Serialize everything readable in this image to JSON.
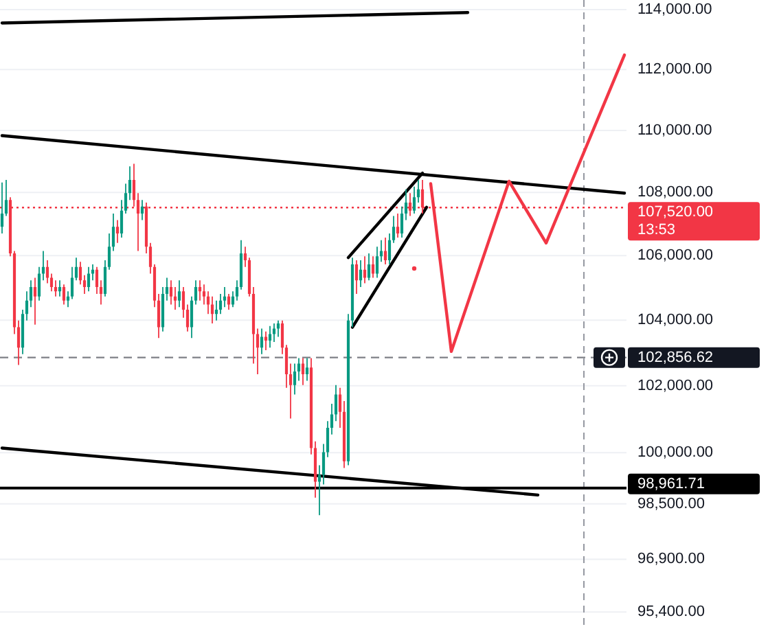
{
  "chart_data": {
    "type": "candlestick",
    "categories": [
      null,
      null,
      null,
      null,
      null,
      null,
      null,
      null,
      null,
      null,
      null,
      null,
      null,
      null,
      null,
      null,
      null,
      null,
      null,
      null,
      null,
      null,
      null,
      null,
      null,
      null,
      null,
      null,
      null,
      null,
      null,
      null,
      null,
      null,
      null,
      null,
      null,
      null,
      null,
      null,
      null,
      null,
      null,
      null,
      null,
      null,
      null,
      null,
      null,
      null,
      null,
      null,
      null,
      null,
      null,
      null,
      null,
      null,
      null,
      null,
      null,
      null,
      null,
      null,
      null,
      null,
      null,
      null,
      null,
      null,
      null,
      null,
      null,
      null,
      null,
      null,
      null,
      null,
      null,
      null,
      null,
      null,
      null,
      null,
      null,
      null,
      null,
      null,
      null,
      null,
      null,
      null,
      null,
      null,
      null,
      null,
      null,
      null,
      null,
      null,
      null,
      null,
      null,
      null,
      null,
      null,
      null,
      null,
      null,
      null,
      null,
      null,
      null,
      null,
      null,
      null,
      null,
      null,
      null,
      null,
      null,
      null,
      null,
      null,
      null,
      null,
      null,
      null,
      null,
      null,
      null,
      null,
      null,
      null,
      null,
      null,
      null,
      null,
      null,
      null,
      null,
      null,
      null,
      null,
      null,
      null,
      null,
      null,
      null,
      null,
      null,
      null
    ],
    "ohlc": [
      [
        106910,
        108320,
        106700,
        107330
      ],
      [
        107330,
        108400,
        107250,
        107760
      ],
      [
        107760,
        107850,
        105980,
        106070
      ],
      [
        106070,
        106150,
        103570,
        103780
      ],
      [
        103780,
        103990,
        102630,
        103160
      ],
      [
        103160,
        104320,
        102960,
        104190
      ],
      [
        104190,
        104890,
        103990,
        104600
      ],
      [
        104600,
        105230,
        104400,
        105020
      ],
      [
        105020,
        105310,
        103860,
        104730
      ],
      [
        104730,
        105650,
        104600,
        105440
      ],
      [
        105440,
        106150,
        105230,
        105650
      ],
      [
        105650,
        105860,
        105140,
        105310
      ],
      [
        105310,
        105440,
        104890,
        105020
      ],
      [
        105020,
        105230,
        104730,
        104890
      ],
      [
        104890,
        105230,
        104730,
        105020
      ],
      [
        105020,
        105100,
        104480,
        104600
      ],
      [
        104600,
        104890,
        104400,
        104730
      ],
      [
        104730,
        105650,
        104650,
        105310
      ],
      [
        105310,
        105940,
        105230,
        105650
      ],
      [
        105650,
        105810,
        105100,
        105230
      ],
      [
        105230,
        105390,
        104810,
        105020
      ],
      [
        105020,
        105650,
        104890,
        105440
      ],
      [
        105440,
        105730,
        105230,
        105560
      ],
      [
        105560,
        105650,
        104810,
        105020
      ],
      [
        105020,
        105230,
        104480,
        104810
      ],
      [
        104810,
        105860,
        104730,
        105650
      ],
      [
        105650,
        106700,
        105560,
        106280
      ],
      [
        106280,
        107330,
        106150,
        106910
      ],
      [
        106910,
        107120,
        106400,
        106700
      ],
      [
        106700,
        107760,
        106570,
        107420
      ],
      [
        107420,
        108280,
        107330,
        107980
      ],
      [
        107980,
        108840,
        107760,
        108400
      ],
      [
        108400,
        108920,
        107550,
        107760
      ],
      [
        107760,
        107980,
        106150,
        107330
      ],
      [
        107330,
        107760,
        107120,
        107550
      ],
      [
        107550,
        107680,
        106070,
        106280
      ],
      [
        106280,
        106400,
        105440,
        105650
      ],
      [
        105650,
        105730,
        104400,
        104600
      ],
      [
        104600,
        104810,
        103450,
        103780
      ],
      [
        103780,
        105020,
        103650,
        104810
      ],
      [
        104810,
        105310,
        104600,
        105020
      ],
      [
        105020,
        105230,
        104480,
        104730
      ],
      [
        104730,
        105020,
        104320,
        104600
      ],
      [
        104600,
        105230,
        104400,
        104890
      ],
      [
        104890,
        105020,
        104070,
        104320
      ],
      [
        104320,
        104480,
        103650,
        103780
      ],
      [
        103780,
        104730,
        103450,
        104600
      ],
      [
        104600,
        105230,
        104480,
        105020
      ],
      [
        105020,
        105230,
        104600,
        104890
      ],
      [
        104890,
        105100,
        104480,
        104730
      ],
      [
        104730,
        104890,
        104190,
        104480
      ],
      [
        104480,
        104730,
        103900,
        104190
      ],
      [
        104190,
        104600,
        103990,
        104320
      ],
      [
        104320,
        104810,
        104190,
        104600
      ],
      [
        104600,
        105020,
        104400,
        104730
      ],
      [
        104730,
        104810,
        104320,
        104480
      ],
      [
        104480,
        104890,
        104400,
        104730
      ],
      [
        104730,
        105230,
        104600,
        105020
      ],
      [
        105020,
        106490,
        104940,
        106070
      ],
      [
        106070,
        106280,
        105650,
        105860
      ],
      [
        105860,
        105940,
        104730,
        104810
      ],
      [
        104810,
        105020,
        102670,
        103570
      ],
      [
        103570,
        103740,
        102350,
        103160
      ],
      [
        103160,
        103740,
        102960,
        103490
      ],
      [
        103490,
        103650,
        103080,
        103370
      ],
      [
        103370,
        103820,
        103160,
        103570
      ],
      [
        103570,
        103900,
        103330,
        103740
      ],
      [
        103740,
        103990,
        103490,
        103900
      ],
      [
        103900,
        103990,
        102960,
        103160
      ],
      [
        103160,
        103240,
        101940,
        102350
      ],
      [
        102350,
        102670,
        101020,
        102020
      ],
      [
        102020,
        102670,
        101740,
        102430
      ],
      [
        102430,
        102840,
        102150,
        102670
      ],
      [
        102670,
        102840,
        102020,
        102350
      ],
      [
        102350,
        102840,
        102150,
        102550
      ],
      [
        102550,
        102840,
        99950,
        100140
      ],
      [
        100140,
        100340,
        98680,
        99150
      ],
      [
        99150,
        99630,
        98170,
        99350
      ],
      [
        99350,
        100260,
        99070,
        100020
      ],
      [
        100020,
        100940,
        99870,
        100740
      ],
      [
        100740,
        101460,
        100540,
        101140
      ],
      [
        101140,
        102020,
        100940,
        101740
      ],
      [
        101740,
        101940,
        100740,
        101220
      ],
      [
        101220,
        101540,
        99550,
        99750
      ],
      [
        99750,
        104190,
        99630,
        103990
      ],
      [
        103990,
        105940,
        103780,
        105730
      ],
      [
        105730,
        105860,
        104810,
        105230
      ],
      [
        105230,
        105860,
        105020,
        105560
      ],
      [
        105560,
        105980,
        105140,
        105310
      ],
      [
        105310,
        106070,
        105230,
        105730
      ],
      [
        105730,
        105980,
        105310,
        105440
      ],
      [
        105440,
        106280,
        105310,
        105980
      ],
      [
        105980,
        106490,
        105810,
        106150
      ],
      [
        106150,
        106570,
        105730,
        105860
      ],
      [
        105860,
        106700,
        105730,
        106490
      ],
      [
        106490,
        107250,
        106400,
        106910
      ],
      [
        106910,
        107330,
        106570,
        106700
      ],
      [
        106700,
        107550,
        106570,
        107330
      ],
      [
        107330,
        108100,
        107120,
        107680
      ],
      [
        107680,
        107980,
        107250,
        107420
      ],
      [
        107420,
        108190,
        107330,
        107850
      ],
      [
        107850,
        108400,
        107680,
        108100
      ],
      [
        108100,
        108400,
        107330,
        107520
      ],
      null,
      null,
      null,
      null,
      null,
      null,
      null,
      null,
      null,
      null,
      null,
      null,
      null,
      null,
      null,
      null,
      null,
      null,
      null,
      null,
      null,
      null,
      null,
      null,
      null,
      null,
      null,
      null,
      null,
      null,
      null,
      null,
      null,
      null,
      null,
      null,
      null,
      null,
      null,
      null,
      null,
      null,
      null,
      null,
      null,
      null,
      null,
      null,
      null
    ],
    "colors": [
      "#089981",
      "#089981",
      "#f23645",
      "#f23645",
      "#f23645",
      "#089981",
      "#089981",
      "#089981",
      "#f23645",
      "#089981",
      "#089981",
      "#f23645",
      "#f23645",
      "#f23645",
      "#089981",
      "#f23645",
      "#089981",
      "#089981",
      "#089981",
      "#f23645",
      "#f23645",
      "#089981",
      "#089981",
      "#f23645",
      "#f23645",
      "#089981",
      "#089981",
      "#089981",
      "#f23645",
      "#089981",
      "#089981",
      "#089981",
      "#f23645",
      "#f23645",
      "#089981",
      "#f23645",
      "#f23645",
      "#f23645",
      "#f23645",
      "#089981",
      "#089981",
      "#f23645",
      "#f23645",
      "#089981",
      "#f23645",
      "#f23645",
      "#089981",
      "#089981",
      "#f23645",
      "#f23645",
      "#f23645",
      "#f23645",
      "#089981",
      "#089981",
      "#089981",
      "#f23645",
      "#089981",
      "#089981",
      "#089981",
      "#f23645",
      "#f23645",
      "#f23645",
      "#f23645",
      "#089981",
      "#f23645",
      "#089981",
      "#089981",
      "#089981",
      "#f23645",
      "#f23645",
      "#f23645",
      "#089981",
      "#089981",
      "#f23645",
      "#089981",
      "#f23645",
      "#f23645",
      "#089981",
      "#089981",
      "#089981",
      "#089981",
      "#089981",
      "#f23645",
      "#f23645",
      "#089981",
      "#089981",
      "#f23645",
      "#089981",
      "#f23645",
      "#089981",
      "#f23645",
      "#089981",
      "#089981",
      "#f23645",
      "#089981",
      "#089981",
      "#f23645",
      "#089981",
      "#089981",
      "#f23645",
      "#089981",
      "#089981",
      "#f23645",
      null,
      null,
      null,
      null,
      null,
      null,
      null,
      null,
      null,
      null,
      null,
      null,
      null,
      null,
      null,
      null,
      null,
      null,
      null,
      null,
      null,
      null,
      null,
      null,
      null,
      null,
      null,
      null,
      null,
      null,
      null,
      null,
      null,
      null,
      null,
      null,
      null,
      null,
      null,
      null,
      null,
      null,
      null,
      null,
      null,
      null,
      null,
      null,
      null
    ],
    "series": [
      {
        "type": "line",
        "color": "#000000",
        "values": [
          113550,
          null,
          null,
          null,
          null,
          null,
          null,
          null,
          null,
          null,
          null,
          null,
          null,
          null,
          null,
          null,
          null,
          null,
          null,
          null,
          null,
          null,
          null,
          null,
          null,
          null,
          null,
          null,
          null,
          null,
          null,
          null,
          null,
          null,
          null,
          null,
          null,
          null,
          null,
          null,
          null,
          null,
          null,
          null,
          null,
          null,
          null,
          null,
          null,
          null,
          null,
          null,
          null,
          null,
          null,
          null,
          null,
          null,
          null,
          null,
          null,
          null,
          null,
          null,
          null,
          null,
          null,
          null,
          null,
          null,
          null,
          null,
          null,
          null,
          null,
          null,
          null,
          null,
          null,
          null,
          null,
          null,
          null,
          null,
          null,
          null,
          null,
          null,
          null,
          null,
          null,
          null,
          null,
          null,
          null,
          null,
          null,
          null,
          null,
          null,
          null,
          null,
          null,
          null,
          null,
          null,
          null,
          null,
          null,
          null,
          null,
          null,
          null,
          113900,
          null,
          null,
          null,
          null,
          null,
          null,
          null,
          null,
          null,
          null,
          null,
          null,
          null,
          null,
          null,
          null,
          null,
          null,
          null,
          null,
          null,
          null,
          null,
          null,
          null,
          null,
          null,
          null,
          null,
          null,
          null,
          null,
          null,
          null,
          null,
          null,
          null,
          null
        ]
      },
      {
        "type": "line",
        "color": "#000000",
        "values": [
          109830,
          null,
          null,
          null,
          null,
          null,
          null,
          null,
          null,
          null,
          null,
          null,
          null,
          null,
          null,
          null,
          null,
          null,
          null,
          null,
          null,
          null,
          null,
          null,
          null,
          null,
          null,
          null,
          null,
          null,
          null,
          null,
          null,
          null,
          null,
          null,
          null,
          null,
          null,
          null,
          null,
          null,
          null,
          null,
          null,
          null,
          null,
          null,
          null,
          null,
          null,
          null,
          null,
          null,
          null,
          null,
          null,
          null,
          null,
          null,
          null,
          null,
          null,
          null,
          null,
          null,
          null,
          null,
          null,
          null,
          null,
          null,
          null,
          null,
          null,
          null,
          null,
          null,
          null,
          null,
          null,
          null,
          null,
          null,
          null,
          null,
          null,
          null,
          null,
          null,
          null,
          null,
          null,
          null,
          null,
          null,
          null,
          null,
          null,
          null,
          null,
          null,
          null,
          null,
          null,
          null,
          null,
          null,
          null,
          null,
          null,
          null,
          null,
          null,
          null,
          null,
          null,
          null,
          null,
          null,
          null,
          null,
          null,
          null,
          null,
          null,
          null,
          null,
          null,
          null,
          null,
          null,
          null,
          null,
          null,
          null,
          null,
          null,
          null,
          null,
          null,
          null,
          null,
          null,
          null,
          null,
          null,
          null,
          null,
          null,
          null,
          107980
        ]
      },
      {
        "type": "line",
        "color": "#000000",
        "values": [
          100140,
          null,
          null,
          null,
          null,
          null,
          null,
          null,
          null,
          null,
          null,
          null,
          null,
          null,
          null,
          null,
          null,
          null,
          null,
          null,
          null,
          null,
          null,
          null,
          null,
          null,
          null,
          null,
          null,
          null,
          null,
          null,
          null,
          null,
          null,
          null,
          null,
          null,
          null,
          null,
          null,
          null,
          null,
          null,
          null,
          null,
          null,
          null,
          null,
          null,
          null,
          null,
          null,
          null,
          null,
          null,
          null,
          null,
          null,
          null,
          null,
          null,
          null,
          null,
          null,
          null,
          null,
          null,
          null,
          null,
          null,
          null,
          null,
          null,
          null,
          null,
          null,
          null,
          null,
          null,
          null,
          null,
          null,
          null,
          null,
          null,
          null,
          null,
          null,
          null,
          null,
          null,
          null,
          null,
          null,
          null,
          null,
          null,
          null,
          null,
          null,
          null,
          null,
          null,
          null,
          null,
          null,
          null,
          null,
          null,
          null,
          null,
          null,
          null,
          null,
          null,
          null,
          null,
          null,
          null,
          null,
          null,
          null,
          null,
          null,
          null,
          null,
          null,
          null,
          null,
          98760,
          null,
          null,
          null,
          null,
          null,
          null,
          null,
          null,
          null,
          null,
          null,
          null,
          null,
          null,
          null,
          null,
          null,
          null,
          null,
          null,
          null
        ]
      },
      {
        "type": "line",
        "color": "#000000",
        "values": [
          null,
          null,
          null,
          null,
          null,
          null,
          null,
          null,
          null,
          null,
          null,
          null,
          null,
          null,
          null,
          null,
          null,
          null,
          null,
          null,
          null,
          null,
          null,
          null,
          null,
          null,
          null,
          null,
          null,
          null,
          null,
          null,
          null,
          null,
          null,
          null,
          null,
          null,
          null,
          null,
          null,
          null,
          null,
          null,
          null,
          null,
          null,
          null,
          null,
          null,
          null,
          null,
          null,
          null,
          null,
          null,
          null,
          null,
          null,
          null,
          null,
          null,
          null,
          null,
          null,
          null,
          null,
          null,
          null,
          null,
          null,
          null,
          null,
          null,
          null,
          null,
          null,
          null,
          null,
          null,
          null,
          null,
          null,
          null,
          105940,
          null,
          null,
          null,
          null,
          null,
          null,
          null,
          null,
          null,
          null,
          null,
          null,
          null,
          null,
          null,
          null,
          null,
          108620,
          null,
          null,
          null,
          null,
          null,
          null,
          null,
          null,
          null,
          null,
          null,
          null,
          null,
          null,
          null,
          null,
          null,
          null,
          null,
          null,
          null,
          null,
          null,
          null,
          null,
          null,
          null,
          null,
          null,
          null,
          null,
          null,
          null,
          null,
          null,
          null,
          null,
          null,
          null,
          null,
          null,
          null,
          null,
          null,
          null,
          null,
          null,
          null,
          null
        ]
      },
      {
        "type": "line",
        "color": "#000000",
        "values": [
          null,
          null,
          null,
          null,
          null,
          null,
          null,
          null,
          null,
          null,
          null,
          null,
          null,
          null,
          null,
          null,
          null,
          null,
          null,
          null,
          null,
          null,
          null,
          null,
          null,
          null,
          null,
          null,
          null,
          null,
          null,
          null,
          null,
          null,
          null,
          null,
          null,
          null,
          null,
          null,
          null,
          null,
          null,
          null,
          null,
          null,
          null,
          null,
          null,
          null,
          null,
          null,
          null,
          null,
          null,
          null,
          null,
          null,
          null,
          null,
          null,
          null,
          null,
          null,
          null,
          null,
          null,
          null,
          null,
          null,
          null,
          null,
          null,
          null,
          null,
          null,
          null,
          null,
          null,
          null,
          null,
          null,
          null,
          null,
          null,
          103780,
          null,
          null,
          null,
          null,
          null,
          null,
          null,
          null,
          null,
          null,
          null,
          null,
          null,
          null,
          null,
          null,
          null,
          107530,
          null,
          null,
          null,
          null,
          null,
          null,
          null,
          null,
          null,
          null,
          null,
          null,
          null,
          null,
          null,
          null,
          null,
          null,
          null,
          null,
          null,
          null,
          null,
          null,
          null,
          null,
          null,
          null,
          null,
          null,
          null,
          null,
          null,
          null,
          null,
          null,
          null,
          null,
          null,
          null,
          null,
          null,
          null,
          null,
          null,
          null,
          null,
          null
        ]
      },
      {
        "type": "line",
        "color": "#f23645",
        "values": [
          null,
          null,
          null,
          null,
          null,
          null,
          null,
          null,
          null,
          null,
          null,
          null,
          null,
          null,
          null,
          null,
          null,
          null,
          null,
          null,
          null,
          null,
          null,
          null,
          null,
          null,
          null,
          null,
          null,
          null,
          null,
          null,
          null,
          null,
          null,
          null,
          null,
          null,
          null,
          null,
          null,
          null,
          null,
          null,
          null,
          null,
          null,
          null,
          null,
          null,
          null,
          null,
          null,
          null,
          null,
          null,
          null,
          null,
          null,
          null,
          null,
          null,
          null,
          null,
          null,
          null,
          null,
          null,
          null,
          null,
          null,
          null,
          null,
          null,
          null,
          null,
          null,
          null,
          null,
          null,
          null,
          null,
          null,
          null,
          null,
          null,
          null,
          null,
          null,
          null,
          null,
          null,
          null,
          null,
          null,
          null,
          null,
          null,
          null,
          null,
          null,
          null,
          null,
          null,
          108280,
          null,
          null,
          null,
          null,
          103040,
          null,
          null,
          null,
          null,
          null,
          null,
          null,
          null,
          null,
          null,
          null,
          null,
          null,
          108360,
          null,
          null,
          null,
          null,
          null,
          null,
          null,
          null,
          106400,
          null,
          null,
          null,
          null,
          null,
          null,
          null,
          null,
          null,
          null,
          null,
          null,
          null,
          null,
          null,
          null,
          null,
          null,
          112480
        ]
      },
      {
        "type": "scatter",
        "color": "#f23645",
        "values": [
          null,
          null,
          null,
          null,
          null,
          null,
          null,
          null,
          null,
          null,
          null,
          null,
          null,
          null,
          null,
          null,
          null,
          null,
          null,
          null,
          null,
          null,
          null,
          null,
          null,
          null,
          null,
          null,
          null,
          null,
          null,
          null,
          null,
          null,
          null,
          null,
          null,
          null,
          null,
          null,
          null,
          null,
          null,
          null,
          null,
          null,
          null,
          null,
          null,
          null,
          null,
          null,
          null,
          null,
          null,
          null,
          null,
          null,
          null,
          null,
          null,
          null,
          null,
          null,
          null,
          null,
          null,
          null,
          null,
          null,
          null,
          null,
          null,
          null,
          null,
          null,
          null,
          null,
          null,
          null,
          null,
          null,
          null,
          null,
          null,
          null,
          null,
          null,
          null,
          null,
          null,
          null,
          null,
          null,
          null,
          null,
          null,
          null,
          null,
          null,
          105600,
          null,
          null,
          null,
          null,
          null,
          null,
          null,
          null,
          null,
          null,
          null,
          null,
          null,
          null,
          null,
          null,
          null,
          null,
          null,
          null,
          null,
          null,
          null,
          null,
          null,
          null,
          null,
          null,
          null,
          null,
          null,
          null,
          null,
          null,
          null,
          null,
          null,
          null,
          null,
          null,
          null,
          null,
          null,
          null,
          null,
          null,
          null,
          null,
          null,
          null,
          null
        ]
      }
    ],
    "ylim": [
      95000,
      114000
    ],
    "log": true,
    "yticks": [
      {
        "value": 95400,
        "label": "95,400.00"
      },
      {
        "value": 96900,
        "label": "96,900.00"
      },
      {
        "value": 98500,
        "label": "98,500.00"
      },
      {
        "value": 100000,
        "label": "100,000.00"
      },
      {
        "value": 102000,
        "label": "102,000.00"
      },
      {
        "value": 104000,
        "label": "104,000.00"
      },
      {
        "value": 106000,
        "label": "106,000.00"
      },
      {
        "value": 108000,
        "label": "108,000.00"
      },
      {
        "value": 110000,
        "label": "110,000.00"
      },
      {
        "value": 112000,
        "label": "112,000.00"
      },
      {
        "value": 114000,
        "label": "114,000.00"
      }
    ],
    "ref_lines": [
      {
        "axis": "y",
        "value": 107520,
        "label": "107,520.00\n13:53",
        "color": "#f23645",
        "line_style": "dotted"
      },
      {
        "axis": "y",
        "value": 102856.62,
        "label": "102,856.62",
        "color": "#131722",
        "line_style": "dashed"
      },
      {
        "axis": "y",
        "value": 98961.71,
        "label": "98,961.71",
        "color": "#000000",
        "line_style": "solid"
      }
    ],
    "grid": "y",
    "tick_labels": "y"
  }
}
